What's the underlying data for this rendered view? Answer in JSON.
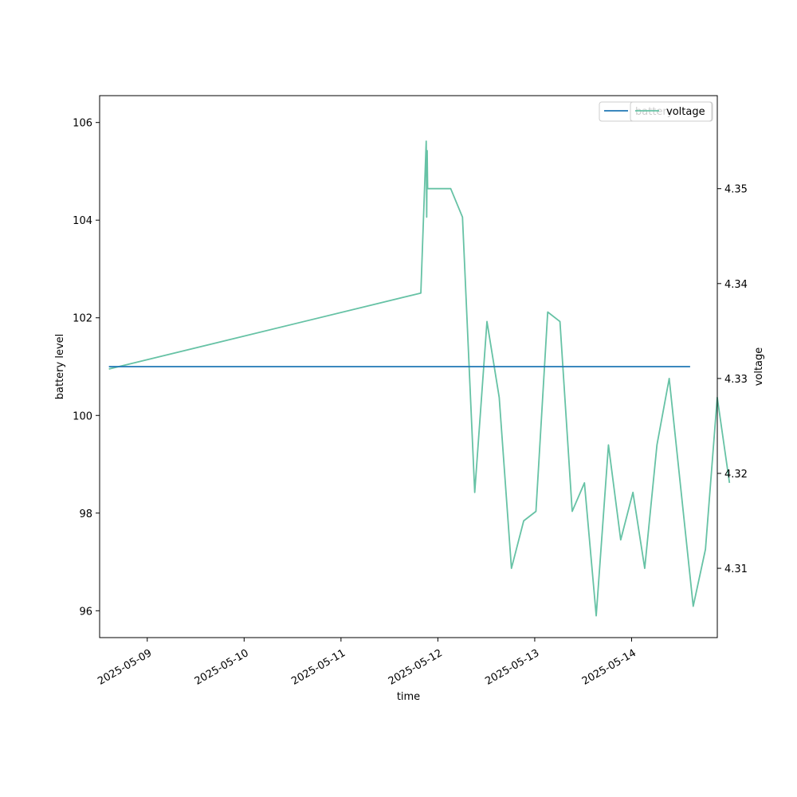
{
  "chart_data": {
    "type": "line",
    "xlabel": "time",
    "ylabel_left": "battery level",
    "ylabel_right": "voltage",
    "x_ticks": [
      "2025-05-09",
      "2025-05-10",
      "2025-05-11",
      "2025-05-12",
      "2025-05-13",
      "2025-05-14"
    ],
    "y_left_ticks": [
      96,
      98,
      100,
      102,
      104,
      106
    ],
    "y_right_ticks": [
      4.31,
      4.32,
      4.33,
      4.34,
      4.35
    ],
    "xlim": [
      "2025-05-08T12:12",
      "2025-05-14T21:14"
    ],
    "ylim_left": [
      95.45,
      106.55
    ],
    "ylim_right": [
      4.3027,
      4.3598
    ],
    "grid": false,
    "legend_placement": "top-right",
    "series": [
      {
        "name": "battery",
        "axis": "left",
        "color": "#1f77b4",
        "points": [
          [
            "2025-05-08T14:30",
            101
          ],
          [
            "2025-05-14T14:30",
            101
          ]
        ]
      },
      {
        "name": "voltage",
        "axis": "right",
        "color": "#66c2a5",
        "points": [
          [
            "2025-05-08T14:30",
            4.331
          ],
          [
            "2025-05-11T19:47",
            4.339
          ],
          [
            "2025-05-11T21:07",
            4.355
          ],
          [
            "2025-05-11T21:14",
            4.347
          ],
          [
            "2025-05-11T21:21",
            4.354
          ],
          [
            "2025-05-11T21:28",
            4.35
          ],
          [
            "2025-05-12T03:11",
            4.35
          ],
          [
            "2025-05-12T06:06",
            4.347
          ],
          [
            "2025-05-12T09:08",
            4.318
          ],
          [
            "2025-05-12T12:10",
            4.336
          ],
          [
            "2025-05-12T15:12",
            4.328
          ],
          [
            "2025-05-12T18:14",
            4.31
          ],
          [
            "2025-05-12T21:16",
            4.315
          ],
          [
            "2025-05-13T00:18",
            4.316
          ],
          [
            "2025-05-13T03:13",
            4.337
          ],
          [
            "2025-05-13T06:15",
            4.336
          ],
          [
            "2025-05-13T09:17",
            4.316
          ],
          [
            "2025-05-13T12:19",
            4.319
          ],
          [
            "2025-05-13T15:14",
            4.305
          ],
          [
            "2025-05-13T18:16",
            4.323
          ],
          [
            "2025-05-13T21:18",
            4.313
          ],
          [
            "2025-05-14T00:20",
            4.318
          ],
          [
            "2025-05-14T03:15",
            4.31
          ],
          [
            "2025-05-14T06:17",
            4.323
          ],
          [
            "2025-05-14T09:19",
            4.33
          ],
          [
            "2025-05-14T15:16",
            4.306
          ],
          [
            "2025-05-14T18:18",
            4.312
          ],
          [
            "2025-05-14T21:13",
            4.328
          ],
          [
            "2025-05-15T00:15",
            4.319
          ]
        ]
      }
    ]
  }
}
